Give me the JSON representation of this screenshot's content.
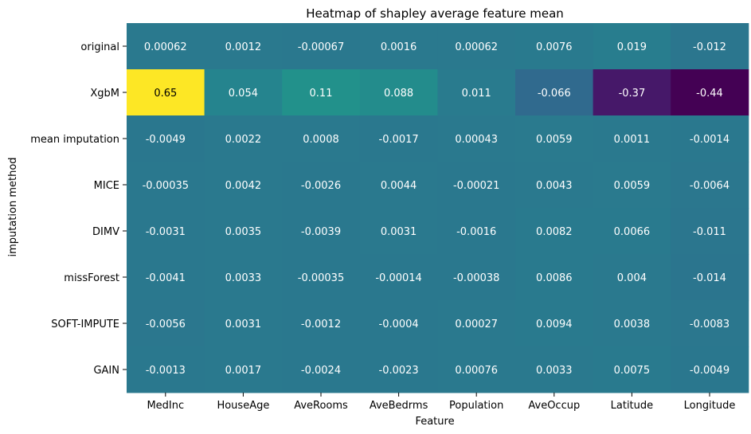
{
  "chart_data": {
    "type": "heatmap",
    "title": "Heatmap of shapley average feature mean",
    "xlabel": "Feature",
    "ylabel": "imputation method",
    "x_categories": [
      "MedInc",
      "HouseAge",
      "AveRooms",
      "AveBedrms",
      "Population",
      "AveOccup",
      "Latitude",
      "Longitude"
    ],
    "y_categories": [
      "original",
      "XgbM",
      "mean imputation",
      "MICE",
      "DIMV",
      "missForest",
      "SOFT-IMPUTE",
      "GAIN"
    ],
    "values": [
      [
        0.00062,
        0.0012,
        -0.00067,
        0.0016,
        0.00062,
        0.0076,
        0.019,
        -0.012
      ],
      [
        0.65,
        0.054,
        0.11,
        0.088,
        0.011,
        -0.066,
        -0.37,
        -0.44
      ],
      [
        -0.0049,
        0.0022,
        0.0008,
        -0.0017,
        0.00043,
        0.0059,
        0.0011,
        -0.0014
      ],
      [
        -0.00035,
        0.0042,
        -0.0026,
        0.0044,
        -0.00021,
        0.0043,
        0.0059,
        -0.0064
      ],
      [
        -0.0031,
        0.0035,
        -0.0039,
        0.0031,
        -0.0016,
        0.0082,
        0.0066,
        -0.011
      ],
      [
        -0.0041,
        0.0033,
        -0.00035,
        -0.00014,
        -0.00038,
        0.0086,
        0.004,
        -0.014
      ],
      [
        -0.0056,
        0.0031,
        -0.0012,
        -0.0004,
        0.00027,
        0.0094,
        0.0038,
        -0.0083
      ],
      [
        -0.0013,
        0.0017,
        -0.0024,
        -0.0023,
        0.00076,
        0.0033,
        0.0075,
        -0.0049
      ]
    ],
    "cell_labels": [
      [
        "0.00062",
        "0.0012",
        "-0.00067",
        "0.0016",
        "0.00062",
        "0.0076",
        "0.019",
        "-0.012"
      ],
      [
        "0.65",
        "0.054",
        "0.11",
        "0.088",
        "0.011",
        "-0.066",
        "-0.37",
        "-0.44"
      ],
      [
        "-0.0049",
        "0.0022",
        "0.0008",
        "-0.0017",
        "0.00043",
        "0.0059",
        "0.0011",
        "-0.0014"
      ],
      [
        "-0.00035",
        "0.0042",
        "-0.0026",
        "0.0044",
        "-0.00021",
        "0.0043",
        "0.0059",
        "-0.0064"
      ],
      [
        "-0.0031",
        "0.0035",
        "-0.0039",
        "0.0031",
        "-0.0016",
        "0.0082",
        "0.0066",
        "-0.011"
      ],
      [
        "-0.0041",
        "0.0033",
        "-0.00035",
        "-0.00014",
        "-0.00038",
        "0.0086",
        "0.004",
        "-0.014"
      ],
      [
        "-0.0056",
        "0.0031",
        "-0.0012",
        "-0.0004",
        "0.00027",
        "0.0094",
        "0.0038",
        "-0.0083"
      ],
      [
        "-0.0013",
        "0.0017",
        "-0.0024",
        "-0.0023",
        "0.00076",
        "0.0033",
        "0.0075",
        "-0.0049"
      ]
    ],
    "colormap": "viridis",
    "vmin": -0.44,
    "vmax": 0.65,
    "colorbar": false,
    "grid": false
  },
  "colors": {
    "text_on_dark": "#ffffff",
    "text_on_light": "#000000",
    "viridis_stops": [
      "#440154",
      "#482878",
      "#3e4989",
      "#31688e",
      "#26828e",
      "#1f9e89",
      "#35b779",
      "#6ece58",
      "#b5de2b",
      "#fde725"
    ]
  }
}
